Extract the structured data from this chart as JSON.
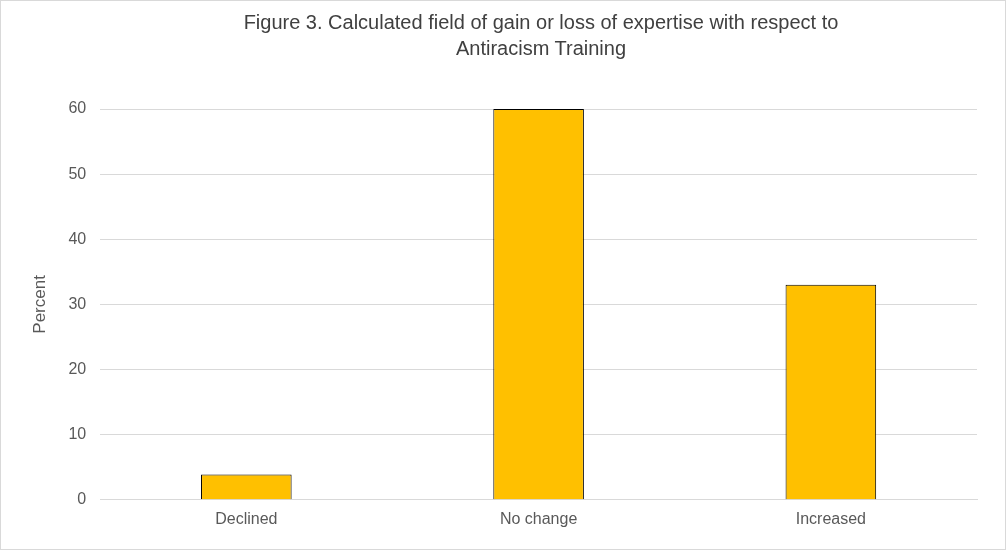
{
  "chart_data": {
    "type": "bar",
    "title": "Figure 3. Calculated field of gain or loss of expertise with respect to Antiracism Training",
    "ylabel": "Percent",
    "categories": [
      "Declined",
      "No change",
      "Increased"
    ],
    "values": [
      3.9,
      60,
      33
    ],
    "color": "#ffc000",
    "ylim": [
      0,
      60
    ],
    "yticks": [
      0,
      10,
      20,
      30,
      40,
      50,
      60
    ],
    "grid": "y"
  }
}
